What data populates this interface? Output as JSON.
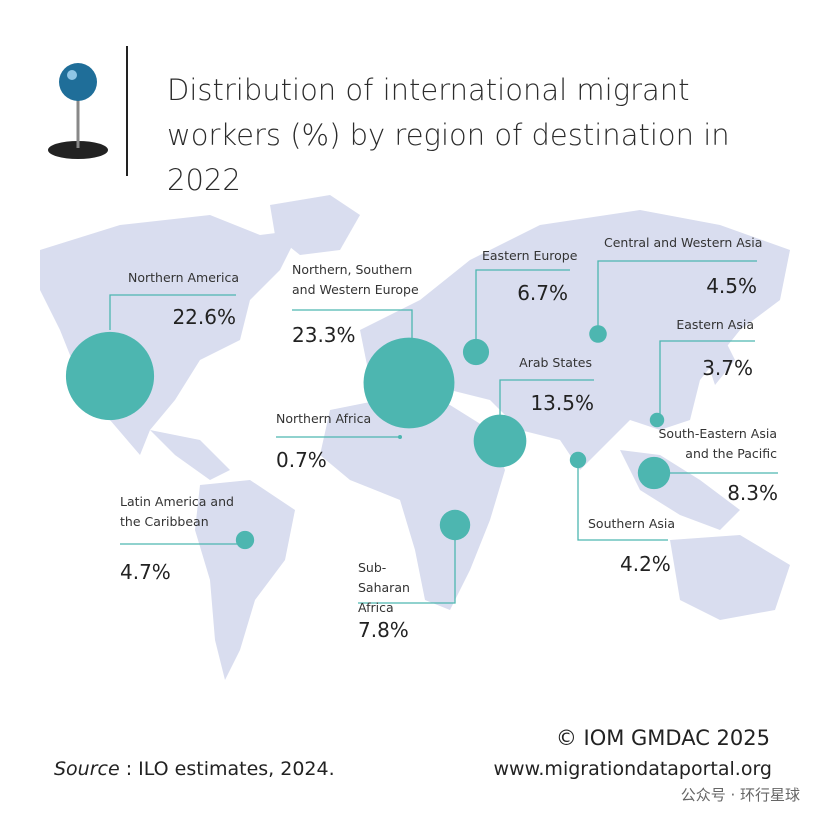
{
  "chart_data": {
    "type": "bubble-map",
    "title": "Distribution of international migrant workers (%) by region of destination in 2022",
    "categories": [
      "Northern America",
      "Northern, Southern and Western Europe",
      "Eastern Europe",
      "Central and Western Asia",
      "Eastern Asia",
      "Arab States",
      "South-Eastern Asia and the Pacific",
      "Southern Asia",
      "Northern Africa",
      "Latin America and the Caribbean",
      "Sub-Saharan Africa"
    ],
    "values": [
      22.6,
      23.3,
      6.7,
      4.5,
      3.7,
      13.5,
      8.3,
      4.2,
      0.7,
      4.7,
      7.8
    ],
    "value_labels": [
      "22.6%",
      "23.3%",
      "6.7%",
      "4.5%",
      "3.7%",
      "13.5%",
      "8.3%",
      "4.2%",
      "0.7%",
      "4.7%",
      "7.8%"
    ],
    "color": "#4db6b0",
    "source_label": "Source",
    "source_text": " : ILO estimates, 2024.",
    "copyright": "© IOM GMDAC 2025",
    "url": "www.migrationdataportal.org",
    "watermark": "公众号 · 环行星球"
  }
}
